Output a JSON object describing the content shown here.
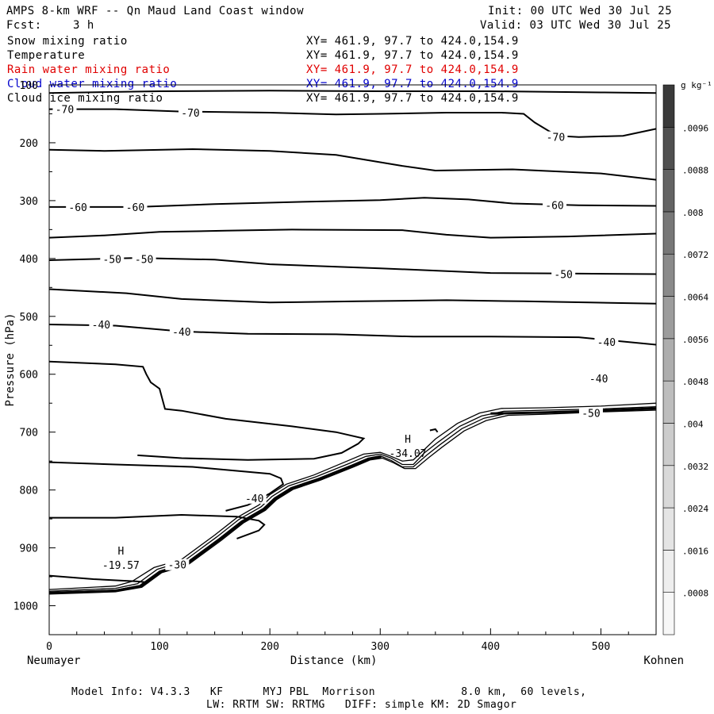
{
  "header": {
    "title": "AMPS 8-km WRF -- Qn Maud Land Coast window",
    "fcst_label": "Fcst:",
    "fcst_value": "3 h",
    "init": "Init: 00 UTC Wed 30 Jul 25",
    "valid": "Valid: 03 UTC Wed 30 Jul 25"
  },
  "fields": [
    {
      "name": "Snow mixing ratio",
      "xy": "XY= 461.9, 97.7 to 424.0,154.9",
      "color": "#000000"
    },
    {
      "name": "Temperature",
      "xy": "XY= 461.9, 97.7 to 424.0,154.9",
      "color": "#000000"
    },
    {
      "name": "Rain water mixing ratio",
      "xy": "XY= 461.9, 97.7 to 424.0,154.9",
      "color": "#e00000"
    },
    {
      "name": "Cloud water mixing ratio",
      "xy": "XY= 461.9, 97.7 to 424.0,154.9",
      "color": "#0000cc"
    },
    {
      "name": "Cloud ice mixing ratio",
      "xy": "XY= 461.9, 97.7 to 424.0,154.9",
      "color": "#000000"
    }
  ],
  "footer": {
    "line1": "Model Info: V4.3.3   KF      MYJ PBL  Morrison             8.0 km,  60 levels,",
    "line2": "LW: RRTM SW: RRTMG   DIFF: simple KM: 2D Smagor"
  },
  "chart_data": {
    "type": "cross-section contour",
    "xlabel": "Distance (km)",
    "ylabel": "Pressure (hPa)",
    "x_left_label": "Neumayer",
    "x_right_label": "Kohnen",
    "xlim": [
      0,
      550
    ],
    "ylim": [
      1050,
      100
    ],
    "x_ticks": [
      0,
      100,
      200,
      300,
      400,
      500
    ],
    "y_ticks": [
      100,
      200,
      300,
      400,
      500,
      600,
      700,
      800,
      900,
      1000
    ],
    "colorbar": {
      "units": "g kg⁻¹",
      "levels": [
        ".0008",
        ".0016",
        ".0024",
        ".0032",
        ".004",
        ".0048",
        ".0056",
        ".0064",
        ".0072",
        ".008",
        ".0088",
        ".0096"
      ],
      "colors": [
        "#f7f7f7",
        "#eeeeee",
        "#e4e4e4",
        "#d9d9d9",
        "#cccccc",
        "#bdbdbd",
        "#adadad",
        "#9c9c9c",
        "#8a8a8a",
        "#777777",
        "#636363",
        "#505050",
        "#3a3a3a"
      ]
    },
    "contour_labels": [
      {
        "text": "-70",
        "x": 14,
        "p": 142
      },
      {
        "text": "-70",
        "x": 128,
        "p": 148
      },
      {
        "text": "-70",
        "x": 459,
        "p": 190
      },
      {
        "text": "-60",
        "x": 26,
        "p": 311
      },
      {
        "text": "-60",
        "x": 78,
        "p": 311
      },
      {
        "text": "-60",
        "x": 458,
        "p": 308
      },
      {
        "text": "-50",
        "x": 57,
        "p": 401
      },
      {
        "text": "-50",
        "x": 86,
        "p": 401
      },
      {
        "text": "-50",
        "x": 466,
        "p": 427
      },
      {
        "text": "-40",
        "x": 47,
        "p": 514
      },
      {
        "text": "-40",
        "x": 120,
        "p": 526
      },
      {
        "text": "-40",
        "x": 505,
        "p": 544
      },
      {
        "text": "-40",
        "x": 498,
        "p": 607
      },
      {
        "text": "-50",
        "x": 491,
        "p": 667
      },
      {
        "text": "-40",
        "x": 186,
        "p": 814
      },
      {
        "text": "-30",
        "x": 116,
        "p": 929
      }
    ],
    "extrema": [
      {
        "symbol": "H",
        "value": "-34.07",
        "x": 325,
        "p": 732
      },
      {
        "symbol": "H",
        "value": "-19.57",
        "x": 65,
        "p": 925
      }
    ],
    "isotherms": [
      [
        [
          0,
          114
        ],
        [
          100,
          111
        ],
        [
          200,
          110
        ],
        [
          300,
          111
        ],
        [
          400,
          111
        ],
        [
          500,
          113
        ],
        [
          550,
          114
        ]
      ],
      [
        [
          0,
          142
        ],
        [
          60,
          142
        ],
        [
          120,
          146
        ],
        [
          200,
          148
        ],
        [
          260,
          151
        ],
        [
          300,
          150
        ],
        [
          360,
          148
        ],
        [
          410,
          148
        ],
        [
          430,
          150
        ],
        [
          440,
          165
        ],
        [
          460,
          188
        ],
        [
          480,
          190
        ],
        [
          520,
          188
        ],
        [
          550,
          176
        ]
      ],
      [
        [
          0,
          212
        ],
        [
          50,
          214
        ],
        [
          130,
          211
        ],
        [
          200,
          214
        ],
        [
          260,
          221
        ],
        [
          320,
          240
        ],
        [
          350,
          248
        ],
        [
          420,
          246
        ],
        [
          500,
          253
        ],
        [
          550,
          264
        ]
      ],
      [
        [
          0,
          311
        ],
        [
          80,
          311
        ],
        [
          150,
          306
        ],
        [
          230,
          302
        ],
        [
          300,
          299
        ],
        [
          340,
          295
        ],
        [
          380,
          298
        ],
        [
          420,
          305
        ],
        [
          480,
          308
        ],
        [
          550,
          309
        ]
      ],
      [
        [
          0,
          364
        ],
        [
          50,
          360
        ],
        [
          100,
          354
        ],
        [
          160,
          352
        ],
        [
          220,
          350
        ],
        [
          320,
          351
        ],
        [
          360,
          359
        ],
        [
          400,
          364
        ],
        [
          470,
          362
        ],
        [
          550,
          357
        ]
      ],
      [
        [
          0,
          403
        ],
        [
          80,
          399
        ],
        [
          150,
          402
        ],
        [
          200,
          410
        ],
        [
          300,
          417
        ],
        [
          400,
          425
        ],
        [
          470,
          426
        ],
        [
          550,
          427
        ]
      ],
      [
        [
          0,
          453
        ],
        [
          70,
          460
        ],
        [
          120,
          470
        ],
        [
          200,
          476
        ],
        [
          280,
          474
        ],
        [
          360,
          472
        ],
        [
          430,
          474
        ],
        [
          490,
          476
        ],
        [
          550,
          478
        ]
      ],
      [
        [
          0,
          514
        ],
        [
          60,
          516
        ],
        [
          120,
          526
        ],
        [
          180,
          530
        ],
        [
          260,
          531
        ],
        [
          330,
          535
        ],
        [
          400,
          535
        ],
        [
          480,
          536
        ],
        [
          550,
          549
        ]
      ],
      [
        [
          0,
          578
        ],
        [
          60,
          583
        ],
        [
          85,
          587
        ],
        [
          88,
          600
        ],
        [
          92,
          614
        ],
        [
          100,
          625
        ],
        [
          105,
          660
        ],
        [
          120,
          663
        ],
        [
          160,
          677
        ],
        [
          220,
          690
        ],
        [
          260,
          700
        ],
        [
          285,
          711
        ],
        [
          280,
          720
        ],
        [
          265,
          736
        ],
        [
          240,
          746
        ],
        [
          180,
          748
        ],
        [
          120,
          745
        ],
        [
          80,
          740
        ]
      ],
      [
        [
          0,
          752
        ],
        [
          60,
          756
        ],
        [
          130,
          760
        ],
        [
          200,
          772
        ],
        [
          210,
          780
        ],
        [
          212,
          790
        ],
        [
          200,
          806
        ],
        [
          180,
          826
        ],
        [
          160,
          836
        ]
      ],
      [
        [
          0,
          848
        ],
        [
          60,
          848
        ],
        [
          120,
          843
        ],
        [
          170,
          846
        ],
        [
          190,
          853
        ],
        [
          195,
          860
        ],
        [
          190,
          870
        ],
        [
          170,
          884
        ]
      ],
      [
        [
          345,
          697
        ],
        [
          350,
          695
        ],
        [
          352,
          700
        ]
      ],
      [
        [
          0,
          948
        ],
        [
          40,
          954
        ],
        [
          80,
          958
        ],
        [
          90,
          960
        ]
      ]
    ],
    "terrain_lines": [
      [
        [
          0,
          972
        ],
        [
          60,
          966
        ],
        [
          75,
          958
        ],
        [
          95,
          934
        ],
        [
          120,
          920
        ],
        [
          150,
          878
        ],
        [
          170,
          848
        ],
        [
          190,
          826
        ],
        [
          200,
          808
        ],
        [
          215,
          790
        ],
        [
          240,
          774
        ],
        [
          270,
          750
        ],
        [
          285,
          738
        ],
        [
          300,
          735
        ],
        [
          310,
          742
        ],
        [
          320,
          750
        ],
        [
          330,
          748
        ],
        [
          340,
          730
        ],
        [
          350,
          712
        ],
        [
          370,
          685
        ],
        [
          390,
          667
        ],
        [
          410,
          659
        ],
        [
          450,
          658
        ],
        [
          500,
          655
        ],
        [
          550,
          650
        ]
      ],
      [
        [
          0,
          975
        ],
        [
          60,
          970
        ],
        [
          80,
          962
        ],
        [
          98,
          937
        ],
        [
          122,
          923
        ],
        [
          152,
          881
        ],
        [
          172,
          851
        ],
        [
          192,
          829
        ],
        [
          202,
          811
        ],
        [
          217,
          793
        ],
        [
          242,
          777
        ],
        [
          272,
          754
        ],
        [
          287,
          742
        ],
        [
          300,
          738
        ],
        [
          310,
          745
        ],
        [
          320,
          756
        ],
        [
          330,
          756
        ],
        [
          340,
          736
        ],
        [
          352,
          718
        ],
        [
          372,
          690
        ],
        [
          392,
          672
        ],
        [
          412,
          664
        ],
        [
          450,
          662
        ],
        [
          500,
          660
        ],
        [
          550,
          656
        ]
      ],
      [
        [
          0,
          977
        ],
        [
          60,
          973
        ],
        [
          82,
          965
        ],
        [
          100,
          940
        ],
        [
          124,
          926
        ],
        [
          154,
          884
        ],
        [
          174,
          854
        ],
        [
          194,
          832
        ],
        [
          204,
          814
        ],
        [
          219,
          796
        ],
        [
          244,
          780
        ],
        [
          274,
          757
        ],
        [
          289,
          745
        ],
        [
          300,
          741
        ],
        [
          310,
          749
        ],
        [
          320,
          760
        ],
        [
          330,
          760
        ],
        [
          342,
          740
        ],
        [
          354,
          722
        ],
        [
          374,
          694
        ],
        [
          394,
          676
        ],
        [
          414,
          668
        ],
        [
          450,
          666
        ],
        [
          500,
          663
        ],
        [
          550,
          659
        ]
      ],
      [
        [
          0,
          980
        ],
        [
          60,
          976
        ],
        [
          84,
          968
        ],
        [
          102,
          943
        ],
        [
          126,
          929
        ],
        [
          156,
          887
        ],
        [
          176,
          857
        ],
        [
          196,
          835
        ],
        [
          206,
          817
        ],
        [
          221,
          799
        ],
        [
          246,
          783
        ],
        [
          276,
          760
        ],
        [
          291,
          748
        ],
        [
          302,
          745
        ],
        [
          312,
          753
        ],
        [
          322,
          763
        ],
        [
          332,
          763
        ],
        [
          344,
          744
        ],
        [
          356,
          726
        ],
        [
          376,
          698
        ],
        [
          396,
          680
        ],
        [
          416,
          671
        ],
        [
          450,
          669
        ],
        [
          500,
          665
        ],
        [
          550,
          662
        ]
      ]
    ],
    "terrain_thick": [
      [
        0,
        978
      ],
      [
        60,
        974
      ],
      [
        83,
        966
      ],
      [
        101,
        941
      ],
      [
        125,
        927
      ],
      [
        155,
        885
      ],
      [
        175,
        855
      ],
      [
        195,
        833
      ],
      [
        205,
        815
      ],
      [
        220,
        797
      ],
      [
        245,
        781
      ],
      [
        275,
        758
      ],
      [
        290,
        746
      ],
      [
        301,
        743
      ]
    ],
    "terrain_thick2": [
      [
        400,
        668
      ],
      [
        450,
        666
      ],
      [
        500,
        663
      ],
      [
        550,
        659
      ]
    ]
  }
}
